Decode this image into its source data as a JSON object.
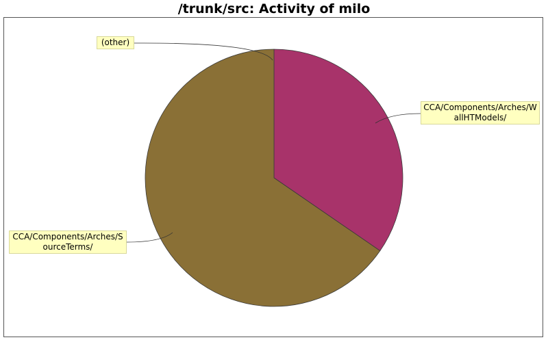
{
  "chart_data": {
    "type": "pie",
    "title": "/trunk/src: Activity of milo",
    "slices": [
      {
        "label": "(other)",
        "value": 0.0,
        "color": "#8a7040"
      },
      {
        "label": "CCA/Components/Arches/WallHTModels/",
        "label_lines": [
          "CCA/Components/Arches/W",
          "allHTModels/"
        ],
        "value": 34.6,
        "color": "#a8336a"
      },
      {
        "label": "CCA/Components/Arches/SourceTerms/",
        "label_lines": [
          "CCA/Components/Arches/S",
          "ourceTerms/"
        ],
        "value": 65.4,
        "color": "#8a7036"
      }
    ],
    "legend": "callouts"
  }
}
